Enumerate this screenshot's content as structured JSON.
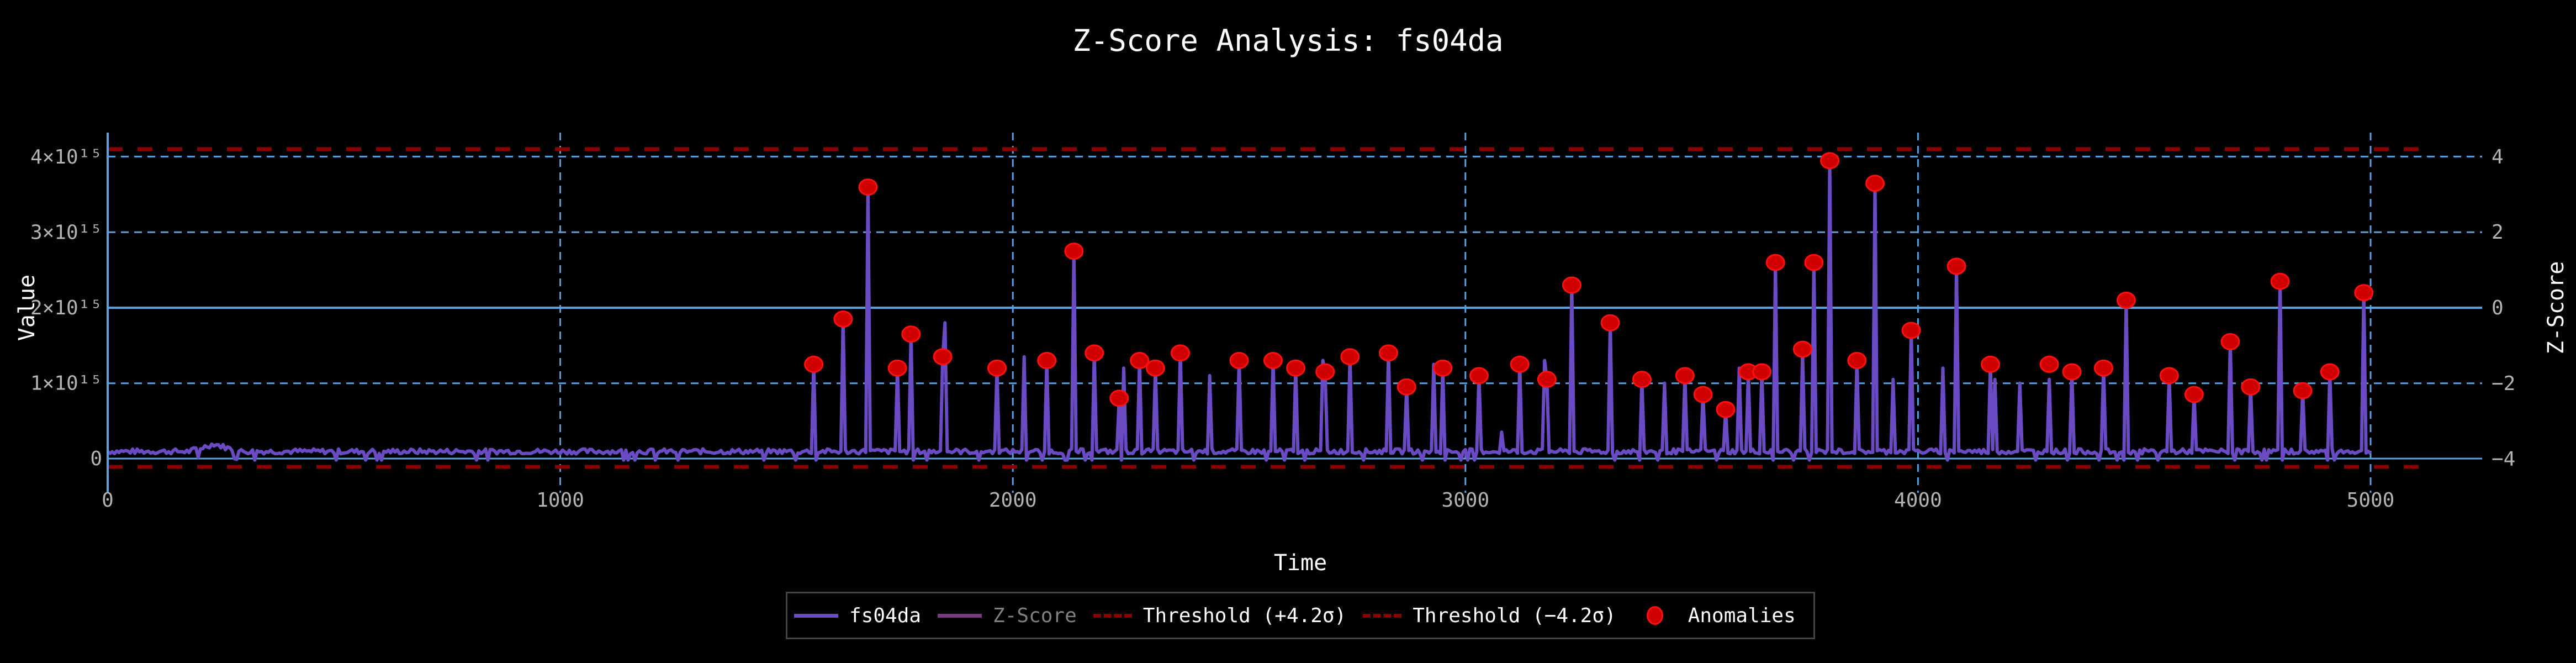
{
  "title": "Z-Score Analysis: fs04da",
  "colors": {
    "background": "#000000",
    "series": "#6a4bc4",
    "zscore": "#7b3a80",
    "threshold": "#8b0000",
    "anomaly": "#e00000",
    "grid": "#5aa0dc",
    "tick_text": "#b3b3b3"
  },
  "axes": {
    "x_label": "Time",
    "y_left_label": "Value",
    "y_right_label": "Z-Score",
    "x_ticks": [
      "0",
      "1000",
      "2000",
      "3000",
      "4000",
      "5000"
    ],
    "y_left_ticks": [
      "0",
      "1×10¹⁵",
      "2×10¹⁵",
      "3×10¹⁵",
      "4×10¹⁵"
    ],
    "y_right_ticks": [
      "4",
      "2",
      "0",
      "−2",
      "−4"
    ]
  },
  "legend": {
    "items": [
      {
        "label": "fs04da",
        "style": "solid",
        "color": "#6a4bc4",
        "muted": false
      },
      {
        "label": "Z-Score",
        "style": "solid",
        "color": "#7b3a80",
        "muted": true
      },
      {
        "label": "Threshold (+4.2σ)",
        "style": "dashed",
        "color": "#8b0000",
        "muted": false
      },
      {
        "label": "Threshold (−4.2σ)",
        "style": "dashed",
        "color": "#8b0000",
        "muted": false
      },
      {
        "label": "Anomalies",
        "style": "marker",
        "color": "#e00000",
        "muted": false
      }
    ]
  },
  "chart_data": {
    "type": "line",
    "title": "Z-Score Analysis: fs04da",
    "xlabel": "Time",
    "ylabel": "Value",
    "y2label": "Z-Score",
    "xlim": [
      0,
      5300
    ],
    "ylim": [
      -150000000000000.0,
      4300000000000000.0
    ],
    "y2lim": [
      -4.4,
      4.4
    ],
    "grid": true,
    "legend_position": "bottom-center",
    "baseline_value": 100000000000000.0,
    "thresholds": {
      "upper_z": 4.2,
      "lower_z": -4.2
    },
    "series": [
      {
        "name": "fs04da",
        "axis": "left",
        "description": "noisy baseline ~0.05-0.15e15 with spikes from t≈1550 onward"
      },
      {
        "name": "Z-Score",
        "axis": "right",
        "hidden": true
      }
    ],
    "anomalies": {
      "x": [
        1560,
        1625,
        1680,
        1745,
        1775,
        1845,
        1965,
        2075,
        2135,
        2180,
        2235,
        2280,
        2315,
        2370,
        2500,
        2575,
        2625,
        2690,
        2745,
        2830,
        2870,
        2950,
        3030,
        3120,
        3180,
        3235,
        3320,
        3390,
        3485,
        3525,
        3575,
        3625,
        3655,
        3685,
        3745,
        3770,
        3805,
        3865,
        3905,
        3985,
        4085,
        4160,
        4290,
        4340,
        4410,
        4460,
        4555,
        4610,
        4690,
        4735,
        4800,
        4850,
        4910,
        4985
      ],
      "y": [
        1250000000000000.0,
        1850000000000000.0,
        3600000000000000.0,
        1200000000000000.0,
        1650000000000000.0,
        1350000000000000.0,
        1200000000000000.0,
        1300000000000000.0,
        2750000000000000.0,
        1400000000000000.0,
        800000000000000.0,
        1300000000000000.0,
        1200000000000000.0,
        1400000000000000.0,
        1300000000000000.0,
        1300000000000000.0,
        1200000000000000.0,
        1150000000000000.0,
        1350000000000000.0,
        1400000000000000.0,
        950000000000000.0,
        1200000000000000.0,
        1100000000000000.0,
        1250000000000000.0,
        1050000000000000.0,
        2300000000000000.0,
        1800000000000000.0,
        1050000000000000.0,
        1100000000000000.0,
        850000000000000.0,
        650000000000000.0,
        1150000000000000.0,
        1150000000000000.0,
        2600000000000000.0,
        1450000000000000.0,
        2600000000000000.0,
        3950000000000000.0,
        1300000000000000.0,
        3650000000000000.0,
        1700000000000000.0,
        2550000000000000.0,
        1250000000000000.0,
        1250000000000000.0,
        1150000000000000.0,
        1200000000000000.0,
        2100000000000000.0,
        1100000000000000.0,
        850000000000000.0,
        1550000000000000.0,
        950000000000000.0,
        2350000000000000.0,
        900000000000000.0,
        1150000000000000.0,
        2200000000000000.0
      ]
    },
    "unmarked_spikes": {
      "x": [
        1850,
        2025,
        2245,
        2435,
        2685,
        2930,
        3080,
        3175,
        3440,
        3605,
        3745,
        3945,
        4055,
        4170,
        4225,
        4290
      ],
      "y": [
        1800000000000000.0,
        1350000000000000.0,
        1200000000000000.0,
        1100000000000000.0,
        1300000000000000.0,
        1250000000000000.0,
        350000000000000.0,
        1300000000000000.0,
        1000000000000000.0,
        1200000000000000.0,
        1400000000000000.0,
        1050000000000000.0,
        1200000000000000.0,
        1050000000000000.0,
        1000000000000000.0,
        1050000000000000.0
      ]
    }
  }
}
